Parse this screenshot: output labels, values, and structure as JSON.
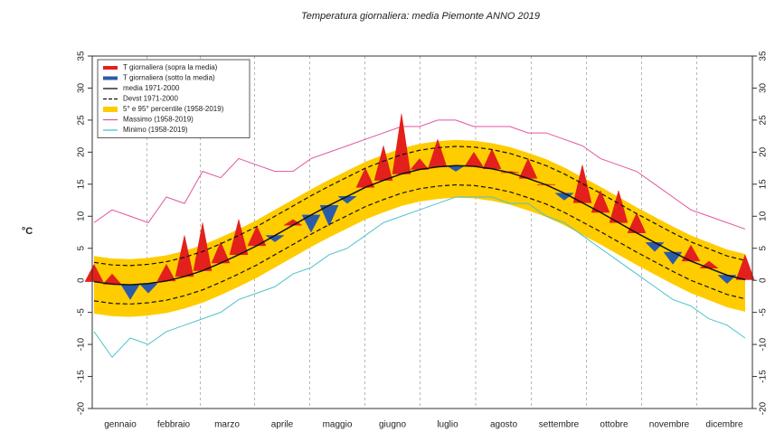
{
  "chart_data": {
    "type": "line",
    "title": "Temperatura giornaliera: media Piemonte ANNO 2019",
    "y_label": "°C",
    "x": [
      1,
      11,
      21,
      31,
      41,
      51,
      61,
      71,
      81,
      91,
      101,
      111,
      121,
      131,
      141,
      151,
      161,
      171,
      181,
      191,
      201,
      211,
      221,
      231,
      241,
      251,
      261,
      271,
      281,
      291,
      301,
      311,
      321,
      331,
      341,
      351,
      361
    ],
    "xlim": [
      0,
      365
    ],
    "xticks": [
      {
        "value": 15.5,
        "label": "gennaio"
      },
      {
        "value": 45,
        "label": "febbraio"
      },
      {
        "value": 74.5,
        "label": "marzo"
      },
      {
        "value": 105,
        "label": "aprile"
      },
      {
        "value": 135.5,
        "label": "maggio"
      },
      {
        "value": 166,
        "label": "giugno"
      },
      {
        "value": 196.5,
        "label": "luglio"
      },
      {
        "value": 227.5,
        "label": "agosto"
      },
      {
        "value": 258,
        "label": "settembre"
      },
      {
        "value": 288.5,
        "label": "ottobre"
      },
      {
        "value": 319,
        "label": "novembre"
      },
      {
        "value": 349.5,
        "label": "dicembre"
      }
    ],
    "ylim": [
      -20,
      35
    ],
    "yticks": [
      -20,
      -15,
      -10,
      -5,
      0,
      5,
      10,
      15,
      20,
      25,
      30,
      35
    ],
    "series": [
      {
        "name": "T  giornaliera (sopra la media)",
        "color": "#e3201b",
        "values": [
          2.5,
          1.0,
          null,
          null,
          2.5,
          7.0,
          9.0,
          6.0,
          9.5,
          8.5,
          null,
          9.5,
          null,
          null,
          null,
          17.5,
          21.0,
          26.0,
          19.0,
          22.0,
          null,
          20.0,
          20.5,
          17.0,
          19.0,
          15.0,
          null,
          18.0,
          14.0,
          14.0,
          10.5,
          null,
          null,
          5.5,
          3.0,
          null,
          4.0
        ]
      },
      {
        "name": "T  giornaliera (sotto la media)",
        "color": "#2b5ca8",
        "values": [
          null,
          null,
          -3.0,
          -2.0,
          null,
          null,
          null,
          null,
          null,
          null,
          6.0,
          null,
          7.5,
          8.5,
          12.0,
          null,
          null,
          null,
          null,
          null,
          17.0,
          null,
          null,
          null,
          null,
          null,
          12.5,
          null,
          null,
          null,
          null,
          4.5,
          2.5,
          null,
          null,
          -0.5,
          null
        ]
      },
      {
        "name": "media 1971-2000",
        "color": "#111111",
        "linestyle": "solid",
        "values": [
          -0.2,
          -0.6,
          -0.7,
          -0.5,
          -0.1,
          0.6,
          1.5,
          2.7,
          4.0,
          5.4,
          7.0,
          8.6,
          10.2,
          11.7,
          13.1,
          14.5,
          15.6,
          16.6,
          17.3,
          17.7,
          17.9,
          17.8,
          17.4,
          16.8,
          15.9,
          14.9,
          13.6,
          12.1,
          10.6,
          9.0,
          7.4,
          5.9,
          4.4,
          3.0,
          1.9,
          0.8,
          0.1
        ]
      },
      {
        "name": "Devst 1971-2000",
        "color": "#111111",
        "linestyle": "dashed",
        "upper": [
          2.8,
          2.4,
          2.3,
          2.5,
          2.9,
          3.6,
          4.5,
          5.7,
          7.0,
          8.4,
          10.0,
          11.6,
          13.2,
          14.7,
          16.1,
          17.5,
          18.6,
          19.6,
          20.3,
          20.7,
          20.9,
          20.8,
          20.4,
          19.8,
          18.9,
          17.9,
          16.6,
          15.1,
          13.6,
          12.0,
          10.4,
          8.9,
          7.4,
          6.0,
          4.9,
          3.8,
          3.1
        ],
        "lower": [
          -3.2,
          -3.6,
          -3.7,
          -3.5,
          -3.1,
          -2.4,
          -1.5,
          -0.3,
          1.0,
          2.4,
          4.0,
          5.6,
          7.2,
          8.7,
          10.1,
          11.5,
          12.6,
          13.6,
          14.3,
          14.7,
          14.9,
          14.8,
          14.4,
          13.8,
          12.9,
          11.9,
          10.6,
          9.1,
          7.6,
          6.0,
          4.4,
          2.9,
          1.4,
          0.0,
          -1.1,
          -2.2,
          -2.9
        ]
      },
      {
        "name": "5° e 95° percentile (1958-2019)",
        "color": "#ffcc00",
        "upper": [
          3.8,
          3.4,
          3.3,
          3.5,
          3.9,
          4.6,
          5.5,
          6.7,
          8.0,
          9.4,
          11.0,
          12.6,
          14.2,
          15.7,
          17.1,
          18.5,
          19.6,
          20.6,
          21.3,
          21.7,
          21.9,
          21.8,
          21.4,
          20.8,
          19.9,
          18.9,
          17.6,
          16.1,
          14.6,
          13.0,
          11.4,
          9.9,
          8.4,
          7.0,
          5.9,
          4.8,
          4.1
        ],
        "lower": [
          -5.2,
          -5.6,
          -5.7,
          -5.5,
          -5.1,
          -4.4,
          -3.5,
          -2.3,
          -1.0,
          0.4,
          2.0,
          3.6,
          5.2,
          6.7,
          8.1,
          9.5,
          10.6,
          11.6,
          12.3,
          12.7,
          12.9,
          12.8,
          12.4,
          11.8,
          10.9,
          9.9,
          8.6,
          7.1,
          5.6,
          4.0,
          2.4,
          0.9,
          -0.6,
          -2.0,
          -3.1,
          -4.2,
          -4.9
        ]
      },
      {
        "name": "Massimo (1958-2019)",
        "color": "#e0559e",
        "values": [
          9,
          11,
          10,
          9,
          13,
          12,
          17,
          16,
          19,
          18,
          17,
          17,
          19,
          20,
          21,
          22,
          23,
          24,
          24,
          25,
          25,
          24,
          24,
          24,
          23,
          23,
          22,
          21,
          19,
          18,
          17,
          15,
          13,
          11,
          10,
          9,
          8
        ]
      },
      {
        "name": "Minimo (1958-2019)",
        "color": "#4fc3c8",
        "values": [
          -8,
          -12,
          -9,
          -10,
          -8,
          -7,
          -6,
          -5,
          -3,
          -2,
          -1,
          1,
          2,
          4,
          5,
          7,
          9,
          10,
          11,
          12,
          13,
          13,
          13,
          12,
          12,
          10,
          9,
          7,
          5,
          3,
          1,
          -1,
          -3,
          -4,
          -6,
          -7,
          -9
        ]
      }
    ]
  }
}
